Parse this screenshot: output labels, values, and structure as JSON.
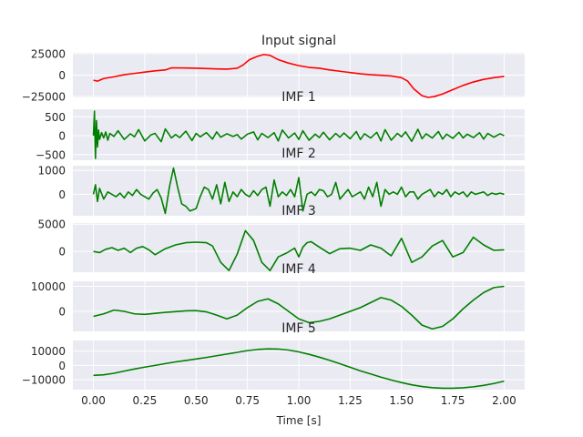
{
  "chart_data": [
    {
      "type": "line",
      "title": "Input signal",
      "color": "#ff0000",
      "ylim": [
        -26000,
        26000
      ],
      "yticks": [
        -25000,
        0,
        25000
      ],
      "ytick_labels": [
        "−25000",
        "0",
        "25000"
      ],
      "xlim": [
        -0.1,
        2.1
      ],
      "xticks": [
        0.0,
        0.25,
        0.5,
        0.75,
        1.0,
        1.25,
        1.5,
        1.75,
        2.0
      ],
      "x": [
        0.0,
        0.02,
        0.05,
        0.1,
        0.15,
        0.2,
        0.25,
        0.3,
        0.35,
        0.38,
        0.45,
        0.5,
        0.55,
        0.6,
        0.65,
        0.7,
        0.73,
        0.76,
        0.8,
        0.83,
        0.86,
        0.9,
        0.95,
        1.0,
        1.05,
        1.1,
        1.15,
        1.2,
        1.25,
        1.3,
        1.35,
        1.4,
        1.45,
        1.5,
        1.53,
        1.56,
        1.6,
        1.63,
        1.66,
        1.7,
        1.75,
        1.8,
        1.85,
        1.9,
        1.95,
        2.0
      ],
      "values": [
        -6000,
        -7000,
        -4000,
        -2000,
        500,
        2000,
        3500,
        5000,
        6000,
        8500,
        8300,
        8000,
        7600,
        7200,
        7000,
        8000,
        12000,
        18000,
        22000,
        24000,
        23000,
        18000,
        14000,
        11000,
        9000,
        8000,
        6000,
        4500,
        3000,
        1500,
        500,
        -200,
        -1000,
        -3000,
        -7000,
        -16000,
        -24000,
        -26000,
        -25000,
        -22000,
        -17000,
        -12000,
        -8000,
        -5000,
        -3000,
        -1500
      ]
    },
    {
      "type": "line",
      "title": "IMF 1",
      "color": "#008000",
      "ylim": [
        -650,
        700
      ],
      "yticks": [
        -500,
        0,
        500
      ],
      "ytick_labels": [
        "−500",
        "0",
        "500"
      ],
      "xlim": [
        -0.1,
        2.1
      ],
      "xticks": [
        0.0,
        0.25,
        0.5,
        0.75,
        1.0,
        1.25,
        1.5,
        1.75,
        2.0
      ],
      "x": [
        0.0,
        0.005,
        0.01,
        0.015,
        0.02,
        0.025,
        0.03,
        0.04,
        0.05,
        0.06,
        0.07,
        0.08,
        0.1,
        0.12,
        0.15,
        0.18,
        0.2,
        0.22,
        0.25,
        0.28,
        0.3,
        0.33,
        0.35,
        0.38,
        0.4,
        0.42,
        0.45,
        0.48,
        0.5,
        0.52,
        0.55,
        0.58,
        0.6,
        0.62,
        0.65,
        0.68,
        0.7,
        0.72,
        0.75,
        0.78,
        0.8,
        0.82,
        0.85,
        0.88,
        0.9,
        0.92,
        0.95,
        0.98,
        1.0,
        1.02,
        1.05,
        1.08,
        1.1,
        1.12,
        1.15,
        1.18,
        1.2,
        1.22,
        1.25,
        1.28,
        1.3,
        1.32,
        1.35,
        1.38,
        1.4,
        1.42,
        1.45,
        1.48,
        1.5,
        1.52,
        1.55,
        1.58,
        1.6,
        1.62,
        1.65,
        1.68,
        1.7,
        1.72,
        1.75,
        1.78,
        1.8,
        1.82,
        1.85,
        1.88,
        1.9,
        1.92,
        1.95,
        1.98,
        2.0
      ],
      "values": [
        0,
        650,
        -600,
        400,
        -300,
        150,
        -100,
        80,
        -60,
        100,
        -120,
        60,
        -20,
        130,
        -100,
        50,
        -30,
        160,
        -140,
        20,
        60,
        -160,
        180,
        -60,
        30,
        -50,
        120,
        -130,
        60,
        -30,
        80,
        -90,
        100,
        -40,
        50,
        -20,
        30,
        -90,
        40,
        100,
        -110,
        60,
        -50,
        80,
        -140,
        150,
        -60,
        70,
        -100,
        130,
        -120,
        40,
        -50,
        90,
        -110,
        60,
        -40,
        70,
        -80,
        110,
        -100,
        50,
        -60,
        90,
        -140,
        160,
        -120,
        60,
        -30,
        100,
        -150,
        170,
        -80,
        50,
        -60,
        110,
        -90,
        40,
        -70,
        90,
        -60,
        40,
        -50,
        80,
        -90,
        60,
        -40,
        50,
        0
      ]
    },
    {
      "type": "line",
      "title": "IMF 2",
      "color": "#008000",
      "ylim": [
        -900,
        1200
      ],
      "yticks": [
        0,
        1000
      ],
      "ytick_labels": [
        "0",
        "1000"
      ],
      "xlim": [
        -0.1,
        2.1
      ],
      "xticks": [
        0.0,
        0.25,
        0.5,
        0.75,
        1.0,
        1.25,
        1.5,
        1.75,
        2.0
      ],
      "x": [
        0.0,
        0.01,
        0.02,
        0.03,
        0.05,
        0.07,
        0.09,
        0.11,
        0.13,
        0.15,
        0.17,
        0.19,
        0.21,
        0.23,
        0.25,
        0.27,
        0.29,
        0.31,
        0.33,
        0.35,
        0.37,
        0.39,
        0.41,
        0.43,
        0.45,
        0.47,
        0.5,
        0.52,
        0.54,
        0.56,
        0.58,
        0.6,
        0.62,
        0.64,
        0.66,
        0.68,
        0.7,
        0.72,
        0.74,
        0.76,
        0.78,
        0.8,
        0.82,
        0.84,
        0.86,
        0.88,
        0.9,
        0.92,
        0.94,
        0.96,
        0.98,
        1.0,
        1.02,
        1.04,
        1.06,
        1.08,
        1.1,
        1.12,
        1.14,
        1.16,
        1.18,
        1.2,
        1.22,
        1.24,
        1.26,
        1.28,
        1.3,
        1.32,
        1.34,
        1.36,
        1.38,
        1.4,
        1.42,
        1.44,
        1.46,
        1.48,
        1.5,
        1.52,
        1.54,
        1.56,
        1.58,
        1.6,
        1.62,
        1.64,
        1.66,
        1.68,
        1.7,
        1.72,
        1.74,
        1.76,
        1.78,
        1.8,
        1.82,
        1.84,
        1.86,
        1.88,
        1.9,
        1.92,
        1.94,
        1.96,
        1.98,
        2.0
      ],
      "values": [
        0,
        400,
        -300,
        250,
        -200,
        100,
        0,
        -100,
        50,
        -150,
        100,
        -50,
        200,
        0,
        -100,
        -200,
        50,
        200,
        -150,
        -800,
        300,
        1100,
        300,
        -400,
        -500,
        -700,
        -600,
        -100,
        300,
        200,
        -200,
        400,
        -400,
        500,
        -300,
        100,
        -100,
        200,
        0,
        -100,
        150,
        -50,
        200,
        300,
        -500,
        600,
        -100,
        100,
        -50,
        200,
        -100,
        700,
        -700,
        0,
        100,
        -50,
        200,
        150,
        -100,
        0,
        500,
        -200,
        0,
        200,
        -100,
        0,
        100,
        -200,
        300,
        -100,
        500,
        -500,
        200,
        0,
        100,
        0,
        300,
        -100,
        100,
        100,
        -200,
        0,
        100,
        200,
        -100,
        100,
        0,
        200,
        -100,
        100,
        0,
        100,
        -100,
        100,
        0,
        50,
        100,
        -50,
        50,
        0,
        50,
        0
      ]
    },
    {
      "type": "line",
      "title": "IMF 3",
      "color": "#008000",
      "ylim": [
        -3800,
        5200
      ],
      "yticks": [
        0,
        5000
      ],
      "ytick_labels": [
        "0",
        "5000"
      ],
      "xlim": [
        -0.1,
        2.1
      ],
      "xticks": [
        0.0,
        0.25,
        0.5,
        0.75,
        1.0,
        1.25,
        1.5,
        1.75,
        2.0
      ],
      "x": [
        0.0,
        0.03,
        0.06,
        0.09,
        0.12,
        0.15,
        0.18,
        0.21,
        0.24,
        0.27,
        0.3,
        0.35,
        0.4,
        0.45,
        0.5,
        0.55,
        0.58,
        0.62,
        0.66,
        0.7,
        0.74,
        0.78,
        0.82,
        0.86,
        0.9,
        0.94,
        0.98,
        1.0,
        1.02,
        1.04,
        1.06,
        1.1,
        1.15,
        1.2,
        1.25,
        1.3,
        1.35,
        1.4,
        1.45,
        1.5,
        1.55,
        1.6,
        1.65,
        1.7,
        1.75,
        1.8,
        1.85,
        1.9,
        1.95,
        2.0
      ],
      "values": [
        0,
        -200,
        400,
        700,
        200,
        600,
        -200,
        600,
        900,
        300,
        -600,
        500,
        1200,
        1600,
        1700,
        1600,
        1000,
        -2000,
        -3500,
        -500,
        3800,
        2000,
        -2000,
        -3500,
        -1000,
        -300,
        600,
        -1000,
        800,
        1600,
        1800,
        800,
        -400,
        500,
        600,
        200,
        1200,
        600,
        -800,
        2400,
        -2000,
        -1000,
        1000,
        2000,
        -1000,
        -200,
        2600,
        1200,
        200,
        300
      ]
    },
    {
      "type": "line",
      "title": "IMF 4",
      "color": "#008000",
      "ylim": [
        -8000,
        12000
      ],
      "yticks": [
        0,
        10000
      ],
      "ytick_labels": [
        "0",
        "10000"
      ],
      "xlim": [
        -0.1,
        2.1
      ],
      "xticks": [
        0.0,
        0.25,
        0.5,
        0.75,
        1.0,
        1.25,
        1.5,
        1.75,
        2.0
      ],
      "x": [
        0.0,
        0.05,
        0.1,
        0.15,
        0.2,
        0.25,
        0.3,
        0.35,
        0.4,
        0.45,
        0.5,
        0.55,
        0.6,
        0.65,
        0.7,
        0.75,
        0.8,
        0.85,
        0.9,
        0.95,
        1.0,
        1.05,
        1.1,
        1.15,
        1.2,
        1.25,
        1.3,
        1.35,
        1.4,
        1.45,
        1.5,
        1.55,
        1.6,
        1.65,
        1.7,
        1.75,
        1.8,
        1.85,
        1.9,
        1.95,
        2.0
      ],
      "values": [
        -2000,
        -1000,
        500,
        0,
        -1000,
        -1200,
        -800,
        -400,
        -100,
        200,
        300,
        -200,
        -1500,
        -3000,
        -1500,
        1500,
        4000,
        5000,
        3000,
        0,
        -3000,
        -4500,
        -4000,
        -3000,
        -1500,
        0,
        1500,
        3500,
        5500,
        4500,
        2000,
        -1500,
        -5500,
        -7000,
        -6000,
        -3000,
        1000,
        4500,
        7500,
        9500,
        10000
      ]
    },
    {
      "type": "line",
      "title": "IMF 5",
      "color": "#008000",
      "ylim": [
        -17000,
        17500
      ],
      "yticks": [
        -10000,
        0,
        10000
      ],
      "ytick_labels": [
        "−10000",
        "0",
        "10000"
      ],
      "xlim": [
        -0.1,
        2.1
      ],
      "xticks": [
        0.0,
        0.25,
        0.5,
        0.75,
        1.0,
        1.25,
        1.5,
        1.75,
        2.0
      ],
      "xtick_labels": [
        "0.00",
        "0.25",
        "0.50",
        "0.75",
        "1.00",
        "1.25",
        "1.50",
        "1.75",
        "2.00"
      ],
      "xlabel": "Time [s]",
      "x": [
        0.0,
        0.05,
        0.1,
        0.15,
        0.2,
        0.25,
        0.3,
        0.35,
        0.4,
        0.45,
        0.5,
        0.55,
        0.6,
        0.65,
        0.7,
        0.75,
        0.8,
        0.85,
        0.9,
        0.95,
        1.0,
        1.05,
        1.1,
        1.15,
        1.2,
        1.25,
        1.3,
        1.35,
        1.4,
        1.45,
        1.5,
        1.55,
        1.6,
        1.65,
        1.7,
        1.75,
        1.8,
        1.85,
        1.9,
        1.95,
        2.0
      ],
      "values": [
        -7000,
        -6600,
        -5500,
        -4000,
        -2500,
        -1200,
        0,
        1300,
        2500,
        3500,
        4500,
        5600,
        6800,
        8000,
        9200,
        10400,
        11200,
        11600,
        11500,
        10800,
        9500,
        7800,
        5800,
        3600,
        1200,
        -1300,
        -3800,
        -6000,
        -8200,
        -10200,
        -12000,
        -13600,
        -14800,
        -15600,
        -16000,
        -16000,
        -15700,
        -15000,
        -14000,
        -12700,
        -11000
      ]
    }
  ]
}
